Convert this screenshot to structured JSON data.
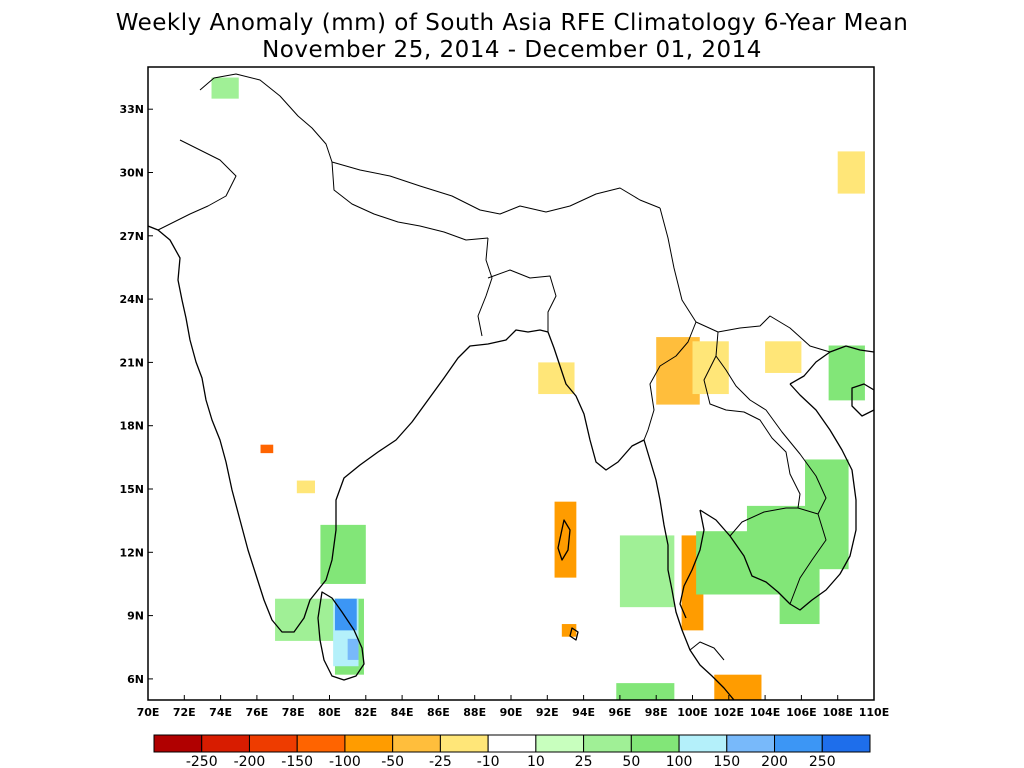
{
  "title": {
    "line1": "Weekly Anomaly (mm) of South Asia RFE Climatology 6-Year Mean",
    "line2": "November 25, 2014 - December 01, 2014"
  },
  "map": {
    "lon_range": [
      70,
      110
    ],
    "lat_range": [
      5,
      35
    ],
    "x_ticks": [
      "70E",
      "72E",
      "74E",
      "76E",
      "78E",
      "80E",
      "82E",
      "84E",
      "86E",
      "88E",
      "90E",
      "92E",
      "94E",
      "96E",
      "98E",
      "100E",
      "102E",
      "104E",
      "106E",
      "108E",
      "110E"
    ],
    "y_ticks": [
      {
        "lat": 6,
        "label": "6N"
      },
      {
        "lat": 9,
        "label": "9N"
      },
      {
        "lat": 12,
        "label": "12N"
      },
      {
        "lat": 15,
        "label": "15N"
      },
      {
        "lat": 18,
        "label": "18N"
      },
      {
        "lat": 21,
        "label": "21N"
      },
      {
        "lat": 24,
        "label": "24N"
      },
      {
        "lat": 27,
        "label": "27N"
      },
      {
        "lat": 30,
        "label": "30N"
      },
      {
        "lat": 33,
        "label": "33N"
      }
    ]
  },
  "legend": {
    "colors": [
      "#b00000",
      "#d81c00",
      "#ee3c00",
      "#ff6400",
      "#ff9c00",
      "#ffbe3c",
      "#ffe678",
      "#ffffff",
      "#c8ffbe",
      "#a0f096",
      "#82e678",
      "#b4f0fa",
      "#78b9fa",
      "#3c96f5",
      "#1e6eeb"
    ],
    "labels": [
      "-250",
      "-200",
      "-150",
      "-100",
      "-50",
      "-25",
      "-10",
      "10",
      "25",
      "50",
      "100",
      "150",
      "200",
      "250"
    ]
  },
  "anomaly_patches": [
    {
      "lon": 77.0,
      "lat": 7.8,
      "w": 3.5,
      "h": 2.0,
      "class": "25"
    },
    {
      "lon": 79.5,
      "lat": 10.5,
      "w": 2.5,
      "h": 2.8,
      "class": "50"
    },
    {
      "lon": 80.3,
      "lat": 6.2,
      "w": 1.6,
      "h": 3.6,
      "class": "50"
    },
    {
      "lon": 80.2,
      "lat": 6.6,
      "w": 1.4,
      "h": 3.2,
      "class": "100"
    },
    {
      "lon": 80.3,
      "lat": 8.3,
      "w": 1.2,
      "h": 1.5,
      "class": "200"
    },
    {
      "lon": 81.0,
      "lat": 6.9,
      "w": 0.6,
      "h": 1.0,
      "class": "150"
    },
    {
      "lon": 76.2,
      "lat": 16.7,
      "w": 0.7,
      "h": 0.4,
      "class": "-100"
    },
    {
      "lon": 92.4,
      "lat": 10.8,
      "w": 1.2,
      "h": 3.6,
      "class": "-50"
    },
    {
      "lon": 92.8,
      "lat": 8.0,
      "w": 0.8,
      "h": 0.6,
      "class": "-50"
    },
    {
      "lon": 99.4,
      "lat": 8.3,
      "w": 1.2,
      "h": 4.5,
      "class": "-50"
    },
    {
      "lon": 101.2,
      "lat": 5.0,
      "w": 2.6,
      "h": 1.2,
      "class": "-50"
    },
    {
      "lon": 95.8,
      "lat": 5.0,
      "w": 3.2,
      "h": 0.8,
      "class": "50"
    },
    {
      "lon": 96.0,
      "lat": 9.4,
      "w": 3.0,
      "h": 3.4,
      "class": "25"
    },
    {
      "lon": 100.2,
      "lat": 10.0,
      "w": 3.8,
      "h": 3.0,
      "class": "50"
    },
    {
      "lon": 103.0,
      "lat": 10.0,
      "w": 4.0,
      "h": 4.2,
      "class": "50"
    },
    {
      "lon": 106.2,
      "lat": 11.2,
      "w": 2.4,
      "h": 5.2,
      "class": "50"
    },
    {
      "lon": 104.8,
      "lat": 8.6,
      "w": 2.2,
      "h": 2.0,
      "class": "50"
    },
    {
      "lon": 98.0,
      "lat": 19.0,
      "w": 2.4,
      "h": 3.2,
      "class": "-25"
    },
    {
      "lon": 100.0,
      "lat": 19.5,
      "w": 2.0,
      "h": 2.5,
      "class": "-10"
    },
    {
      "lon": 104.0,
      "lat": 20.5,
      "w": 2.0,
      "h": 1.5,
      "class": "-10"
    },
    {
      "lon": 107.5,
      "lat": 19.2,
      "w": 2.0,
      "h": 2.6,
      "class": "50"
    },
    {
      "lon": 108.0,
      "lat": 29.0,
      "w": 1.5,
      "h": 2.0,
      "class": "-10"
    },
    {
      "lon": 91.5,
      "lat": 19.5,
      "w": 2.0,
      "h": 1.5,
      "class": "-10"
    },
    {
      "lon": 78.2,
      "lat": 14.8,
      "w": 1.0,
      "h": 0.6,
      "class": "-10"
    },
    {
      "lon": 73.5,
      "lat": 33.5,
      "w": 1.5,
      "h": 1.0,
      "class": "25"
    }
  ]
}
